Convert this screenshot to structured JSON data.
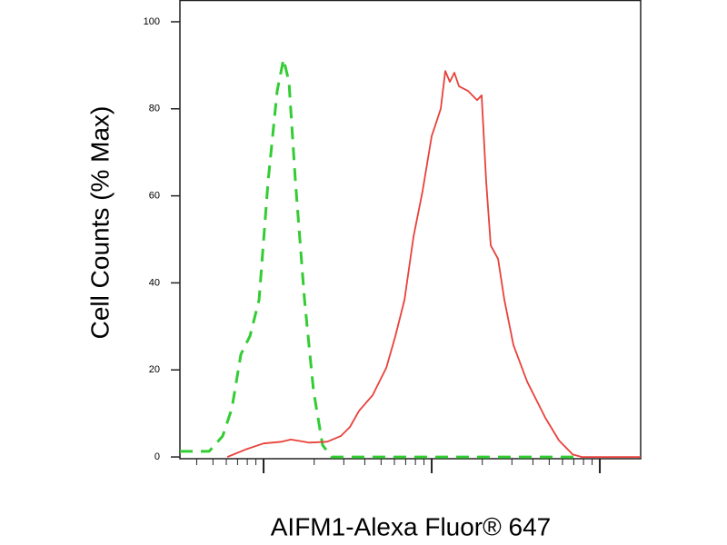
{
  "chart_data": {
    "type": "line",
    "xlabel": "AIFM1-Alexa Fluor® 647",
    "ylabel": "Cell Counts (% Max)",
    "xscale": "log",
    "xlim": [
      318,
      175000
    ],
    "xticks": [
      1000,
      10000,
      100000
    ],
    "ylim": [
      -0.4,
      105
    ],
    "yticks": [
      0,
      20,
      40,
      60,
      80,
      100
    ],
    "series": [
      {
        "color": "#33cc33",
        "line_style": "dashed",
        "x": [
          318,
          474,
          571,
          647,
          733,
          830,
          940,
          1064,
          1205,
          1315,
          1416,
          1546,
          1751,
          1982,
          2244,
          2543,
          77980
        ],
        "values": [
          1.3,
          1.3,
          4.8,
          11.1,
          23.6,
          27.8,
          36.1,
          63.3,
          84.1,
          91.4,
          86.2,
          63.3,
          36.1,
          15.2,
          2.7,
          0,
          0
        ]
      },
      {
        "color": "#e8413a",
        "line_style": "solid",
        "x": [
          608,
          780,
          1000,
          1282,
          1452,
          1864,
          2388,
          2878,
          3266,
          3698,
          4457,
          5370,
          6081,
          6887,
          7798,
          8831,
          10000,
          11324,
          12050,
          12823,
          13646,
          14521,
          16444,
          18621,
          19815,
          21086,
          22439,
          24830,
          27040,
          30620,
          36980,
          47420,
          57150,
          68870,
          77980,
          175000
        ],
        "values": [
          0,
          1.7,
          3.1,
          3.5,
          4.0,
          3.3,
          3.5,
          4.8,
          6.9,
          10.6,
          14.2,
          20.5,
          27.8,
          36.1,
          50.7,
          61.2,
          73.7,
          80.0,
          88.7,
          86.2,
          88.3,
          85.2,
          84.1,
          82.0,
          83.1,
          63.3,
          48.6,
          45.5,
          36.1,
          25.7,
          17.3,
          9.0,
          3.8,
          0.6,
          0,
          0
        ]
      }
    ]
  }
}
